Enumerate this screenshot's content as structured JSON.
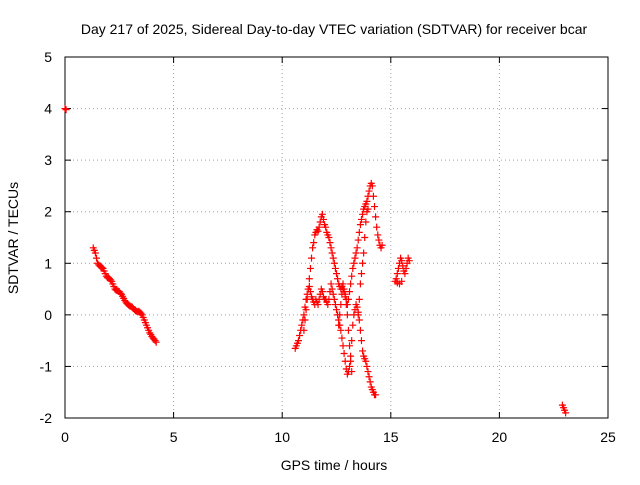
{
  "chart_data": {
    "type": "scatter",
    "title": "Day 217 of 2025, Sidereal Day-to-day VTEC variation (SDTVAR) for receiver bcar",
    "xlabel": "GPS time / hours",
    "ylabel": "SDTVAR / TECUs",
    "xlim": [
      0,
      25
    ],
    "ylim": [
      -2,
      5
    ],
    "xticks": [
      0,
      5,
      10,
      15,
      20,
      25
    ],
    "yticks": [
      -2,
      -1,
      0,
      1,
      2,
      3,
      4,
      5
    ],
    "grid": true,
    "legend": "none",
    "series": [
      {
        "name": "SDTVAR",
        "color": "#ff0000",
        "marker": "plus",
        "points": [
          [
            0.0,
            4.0
          ],
          [
            0.05,
            3.98
          ],
          [
            1.3,
            1.3
          ],
          [
            1.35,
            1.25
          ],
          [
            1.4,
            1.2
          ],
          [
            1.45,
            1.1
          ],
          [
            1.5,
            1.0
          ],
          [
            1.55,
            0.97
          ],
          [
            1.6,
            0.95
          ],
          [
            1.65,
            0.93
          ],
          [
            1.7,
            0.92
          ],
          [
            1.75,
            0.9
          ],
          [
            1.8,
            0.85
          ],
          [
            1.85,
            0.8
          ],
          [
            1.9,
            0.75
          ],
          [
            1.95,
            0.72
          ],
          [
            2.0,
            0.72
          ],
          [
            2.05,
            0.7
          ],
          [
            2.1,
            0.68
          ],
          [
            2.15,
            0.65
          ],
          [
            2.2,
            0.6
          ],
          [
            2.25,
            0.55
          ],
          [
            2.3,
            0.5
          ],
          [
            2.35,
            0.48
          ],
          [
            2.4,
            0.47
          ],
          [
            2.45,
            0.46
          ],
          [
            2.5,
            0.45
          ],
          [
            2.55,
            0.42
          ],
          [
            2.6,
            0.4
          ],
          [
            2.65,
            0.36
          ],
          [
            2.7,
            0.32
          ],
          [
            2.75,
            0.28
          ],
          [
            2.8,
            0.25
          ],
          [
            2.85,
            0.22
          ],
          [
            2.9,
            0.2
          ],
          [
            2.95,
            0.18
          ],
          [
            3.0,
            0.17
          ],
          [
            3.05,
            0.16
          ],
          [
            3.1,
            0.15
          ],
          [
            3.15,
            0.12
          ],
          [
            3.2,
            0.1
          ],
          [
            3.25,
            0.08
          ],
          [
            3.3,
            0.07
          ],
          [
            3.35,
            0.06
          ],
          [
            3.4,
            0.07
          ],
          [
            3.45,
            0.05
          ],
          [
            3.5,
            0.03
          ],
          [
            3.55,
            0.0
          ],
          [
            3.6,
            -0.05
          ],
          [
            3.65,
            -0.1
          ],
          [
            3.7,
            -0.15
          ],
          [
            3.75,
            -0.2
          ],
          [
            3.8,
            -0.25
          ],
          [
            3.85,
            -0.3
          ],
          [
            3.9,
            -0.35
          ],
          [
            3.95,
            -0.38
          ],
          [
            4.0,
            -0.42
          ],
          [
            4.05,
            -0.45
          ],
          [
            4.1,
            -0.47
          ],
          [
            4.15,
            -0.5
          ],
          [
            4.2,
            -0.53
          ],
          [
            10.6,
            -0.65
          ],
          [
            10.65,
            -0.6
          ],
          [
            10.7,
            -0.55
          ],
          [
            10.75,
            -0.5
          ],
          [
            10.8,
            -0.4
          ],
          [
            10.85,
            -0.3
          ],
          [
            10.9,
            -0.2
          ],
          [
            10.95,
            -0.1
          ],
          [
            11.0,
            0.0
          ],
          [
            11.05,
            0.15
          ],
          [
            11.1,
            0.3
          ],
          [
            11.15,
            0.4
          ],
          [
            11.2,
            0.5
          ],
          [
            11.25,
            0.55
          ],
          [
            11.3,
            0.45
          ],
          [
            11.35,
            0.35
          ],
          [
            11.4,
            0.3
          ],
          [
            11.45,
            0.25
          ],
          [
            11.5,
            0.2
          ],
          [
            11.55,
            0.3
          ],
          [
            11.6,
            0.25
          ],
          [
            11.65,
            0.2
          ],
          [
            11.7,
            0.3
          ],
          [
            11.75,
            0.4
          ],
          [
            11.8,
            0.5
          ],
          [
            11.85,
            0.45
          ],
          [
            11.9,
            0.35
          ],
          [
            11.95,
            0.3
          ],
          [
            12.0,
            0.3
          ],
          [
            12.05,
            0.25
          ],
          [
            12.1,
            0.2
          ],
          [
            12.15,
            0.3
          ],
          [
            12.2,
            0.45
          ],
          [
            12.25,
            0.6
          ],
          [
            12.3,
            0.5
          ],
          [
            12.35,
            0.4
          ],
          [
            12.4,
            0.3
          ],
          [
            12.45,
            0.2
          ],
          [
            12.5,
            0.1
          ],
          [
            12.55,
            0.0
          ],
          [
            12.6,
            -0.1
          ],
          [
            12.65,
            -0.2
          ],
          [
            12.7,
            -0.3
          ],
          [
            12.75,
            -0.45
          ],
          [
            12.8,
            -0.6
          ],
          [
            12.85,
            -0.75
          ],
          [
            12.9,
            -0.9
          ],
          [
            12.95,
            -1.05
          ],
          [
            13.0,
            -1.15
          ],
          [
            13.05,
            -1.1
          ],
          [
            13.1,
            -1.0
          ],
          [
            13.15,
            -0.8
          ],
          [
            13.2,
            -0.5
          ],
          [
            13.25,
            -0.2
          ],
          [
            13.3,
            0.0
          ],
          [
            13.35,
            0.1
          ],
          [
            13.4,
            0.2
          ],
          [
            13.45,
            0.15
          ],
          [
            13.5,
            0.05
          ],
          [
            13.55,
            -0.1
          ],
          [
            13.6,
            -0.3
          ],
          [
            13.65,
            -0.5
          ],
          [
            13.7,
            -0.7
          ],
          [
            13.75,
            -0.8
          ],
          [
            13.8,
            -0.85
          ],
          [
            13.85,
            -0.9
          ],
          [
            13.9,
            -1.0
          ],
          [
            13.95,
            -1.1
          ],
          [
            14.0,
            -1.2
          ],
          [
            14.05,
            -1.3
          ],
          [
            14.1,
            -1.4
          ],
          [
            14.15,
            -1.45
          ],
          [
            14.2,
            -1.5
          ],
          [
            14.25,
            -1.55
          ],
          [
            14.3,
            -1.55
          ],
          [
            11.0,
            -0.3
          ],
          [
            11.05,
            -0.1
          ],
          [
            11.1,
            0.1
          ],
          [
            11.15,
            0.3
          ],
          [
            11.2,
            0.5
          ],
          [
            11.25,
            0.7
          ],
          [
            11.3,
            0.9
          ],
          [
            11.35,
            1.1
          ],
          [
            11.4,
            1.3
          ],
          [
            11.45,
            1.4
          ],
          [
            11.5,
            1.55
          ],
          [
            11.55,
            1.6
          ],
          [
            11.6,
            1.65
          ],
          [
            11.65,
            1.62
          ],
          [
            11.7,
            1.7
          ],
          [
            11.75,
            1.8
          ],
          [
            11.8,
            1.9
          ],
          [
            11.85,
            1.95
          ],
          [
            11.9,
            1.85
          ],
          [
            11.95,
            1.75
          ],
          [
            12.0,
            1.7
          ],
          [
            12.05,
            1.6
          ],
          [
            12.1,
            1.55
          ],
          [
            12.15,
            1.5
          ],
          [
            12.2,
            1.4
          ],
          [
            12.25,
            1.3
          ],
          [
            12.3,
            1.2
          ],
          [
            12.35,
            1.1
          ],
          [
            12.4,
            1.0
          ],
          [
            12.45,
            0.9
          ],
          [
            12.5,
            0.8
          ],
          [
            12.55,
            0.7
          ],
          [
            12.6,
            0.6
          ],
          [
            12.65,
            0.55
          ],
          [
            12.7,
            0.5
          ],
          [
            12.75,
            0.55
          ],
          [
            12.8,
            0.6
          ],
          [
            12.85,
            0.5
          ],
          [
            12.9,
            0.4
          ],
          [
            12.95,
            0.3
          ],
          [
            13.0,
            0.2
          ],
          [
            13.05,
            0.3
          ],
          [
            13.1,
            0.45
          ],
          [
            13.15,
            0.6
          ],
          [
            13.2,
            0.75
          ],
          [
            13.25,
            0.9
          ],
          [
            13.3,
            1.0
          ],
          [
            13.35,
            1.1
          ],
          [
            13.4,
            1.2
          ],
          [
            13.45,
            1.3
          ],
          [
            13.5,
            1.45
          ],
          [
            13.55,
            1.6
          ],
          [
            13.6,
            1.75
          ],
          [
            13.65,
            1.85
          ],
          [
            13.7,
            1.95
          ],
          [
            13.75,
            2.05
          ],
          [
            13.8,
            2.1
          ],
          [
            13.85,
            2.15
          ],
          [
            13.9,
            2.2
          ],
          [
            13.95,
            2.3
          ],
          [
            14.0,
            2.4
          ],
          [
            14.05,
            2.5
          ],
          [
            14.1,
            2.55
          ],
          [
            14.15,
            2.5
          ],
          [
            14.2,
            2.3
          ],
          [
            14.25,
            2.1
          ],
          [
            14.3,
            1.9
          ],
          [
            14.35,
            1.7
          ],
          [
            14.4,
            1.55
          ],
          [
            14.45,
            1.45
          ],
          [
            14.5,
            1.35
          ],
          [
            14.55,
            1.3
          ],
          [
            14.6,
            1.35
          ],
          [
            12.6,
            -0.2
          ],
          [
            12.65,
            0.0
          ],
          [
            12.7,
            0.2
          ],
          [
            12.75,
            0.4
          ],
          [
            12.8,
            0.5
          ],
          [
            12.85,
            0.45
          ],
          [
            12.9,
            0.35
          ],
          [
            12.95,
            0.2
          ],
          [
            13.0,
            0.0
          ],
          [
            13.05,
            -0.3
          ],
          [
            13.1,
            -0.6
          ],
          [
            13.15,
            -0.9
          ],
          [
            13.2,
            -1.1
          ],
          [
            13.5,
            0.0
          ],
          [
            13.55,
            0.3
          ],
          [
            13.6,
            0.6
          ],
          [
            13.65,
            0.8
          ],
          [
            13.7,
            1.0
          ],
          [
            13.75,
            1.2
          ],
          [
            13.8,
            1.5
          ],
          [
            13.85,
            1.8
          ],
          [
            13.9,
            2.0
          ],
          [
            13.95,
            2.05
          ],
          [
            15.2,
            0.65
          ],
          [
            15.25,
            0.7
          ],
          [
            15.3,
            0.8
          ],
          [
            15.35,
            0.9
          ],
          [
            15.4,
            1.0
          ],
          [
            15.45,
            1.1
          ],
          [
            15.5,
            1.05
          ],
          [
            15.55,
            0.95
          ],
          [
            15.6,
            0.85
          ],
          [
            15.65,
            0.8
          ],
          [
            15.7,
            0.9
          ],
          [
            15.75,
            1.0
          ],
          [
            15.8,
            1.1
          ],
          [
            15.85,
            1.05
          ],
          [
            15.3,
            0.62
          ],
          [
            15.4,
            0.6
          ],
          [
            15.5,
            0.65
          ],
          [
            22.9,
            -1.75
          ],
          [
            22.95,
            -1.8
          ],
          [
            23.0,
            -1.85
          ],
          [
            23.05,
            -1.9
          ]
        ]
      }
    ]
  }
}
